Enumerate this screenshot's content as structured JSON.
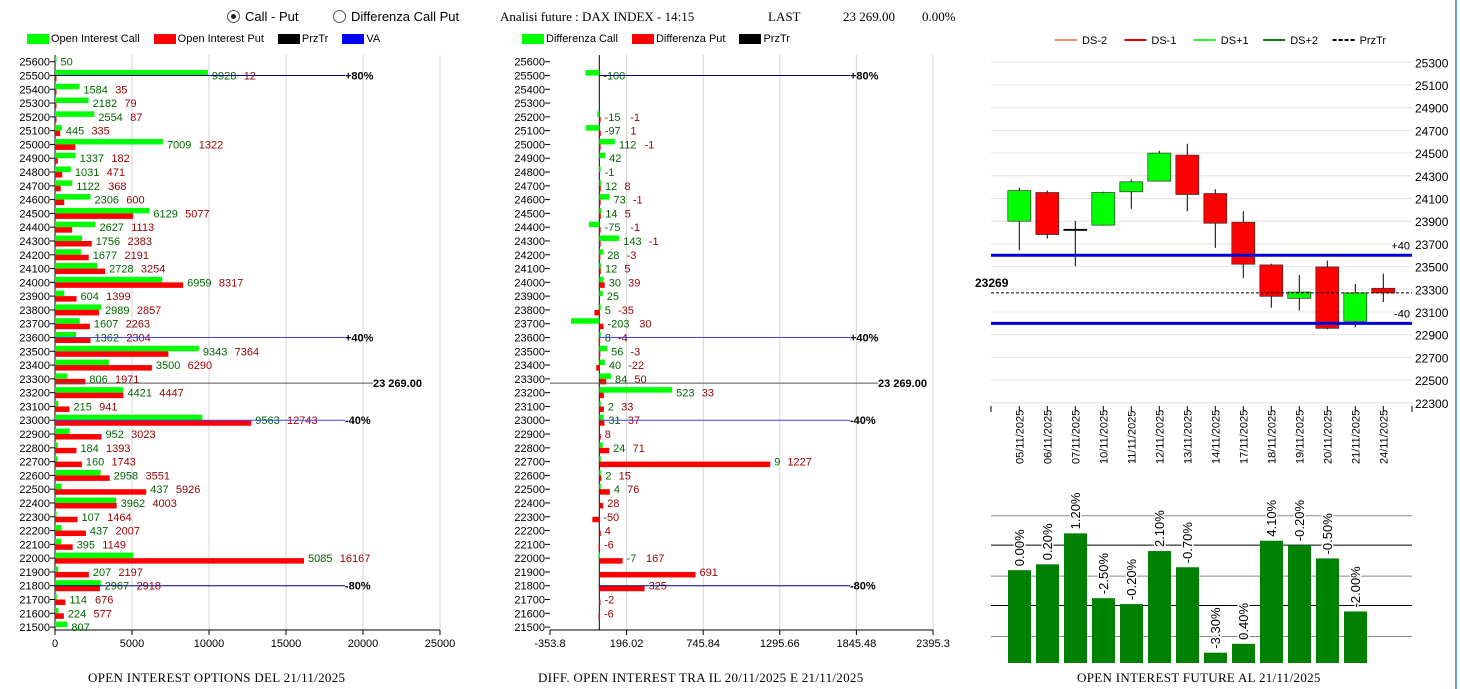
{
  "header": {
    "radio_options": [
      {
        "label": "Call - Put",
        "selected": true
      },
      {
        "label": "Differenza Call Put",
        "selected": false
      }
    ],
    "title": "Analisi future : DAX INDEX - 14:15",
    "last_label": "LAST",
    "last_value": "23 269.00",
    "change": "0.00%"
  },
  "colors": {
    "call": "#00ff00",
    "put": "#ff0000",
    "przTr": "#000000",
    "va": "#0000ff",
    "future_bar": "#008000"
  },
  "legend_left": [
    {
      "label": "Open Interest Call",
      "color": "#00ff00"
    },
    {
      "label": "Open Interest Put",
      "color": "#ff0000"
    },
    {
      "label": "PrzTr",
      "color": "#000000"
    },
    {
      "label": "VA",
      "color": "#0000ff"
    }
  ],
  "legend_middle": [
    {
      "label": "Differenza Call",
      "color": "#00ff00"
    },
    {
      "label": "Differenza Put",
      "color": "#ff0000"
    },
    {
      "label": "PrzTr",
      "color": "#000000"
    }
  ],
  "legend_right": [
    {
      "label": "DS-2",
      "color": "#f08c64",
      "dashed": false
    },
    {
      "label": "DS-1",
      "color": "#e00000",
      "dashed": false
    },
    {
      "label": "DS+1",
      "color": "#33ee33",
      "dashed": false
    },
    {
      "label": "DS+2",
      "color": "#117711",
      "dashed": false
    },
    {
      "label": "PrzTr",
      "color": "#000000",
      "dashed": true
    }
  ],
  "chart_data": [
    {
      "type": "bar",
      "orientation": "horizontal",
      "title": "OPEN INTEREST OPTIONS DEL 21/11/2025",
      "categories": [
        25600,
        25500,
        25400,
        25300,
        25200,
        25100,
        25000,
        24900,
        24800,
        24700,
        24600,
        24500,
        24400,
        24300,
        24200,
        24100,
        24000,
        23900,
        23800,
        23700,
        23600,
        23500,
        23400,
        23300,
        23200,
        23100,
        23000,
        22900,
        22800,
        22700,
        22600,
        22500,
        22400,
        22300,
        22200,
        22100,
        22000,
        21900,
        21800,
        21700,
        21600,
        21500
      ],
      "series": [
        {
          "name": "Open Interest Call",
          "values": [
            50,
            9928,
            1584,
            2182,
            2554,
            445,
            7009,
            1337,
            1031,
            1122,
            2306,
            6129,
            2627,
            1756,
            1677,
            2728,
            6959,
            604,
            2989,
            1607,
            1362,
            9343,
            3500,
            806,
            4421,
            215,
            9563,
            952,
            184,
            160,
            2958,
            437,
            3962,
            107,
            437,
            395,
            5085,
            207,
            2967,
            114,
            224,
            807
          ]
        },
        {
          "name": "Open Interest Put",
          "values": [
            null,
            12,
            35,
            79,
            87,
            335,
            1322,
            182,
            471,
            368,
            600,
            5077,
            1113,
            2383,
            2191,
            3254,
            8317,
            1399,
            2857,
            2263,
            2304,
            7364,
            6290,
            1971,
            4447,
            941,
            12743,
            3023,
            1393,
            1743,
            3551,
            5926,
            4003,
            1464,
            2007,
            1149,
            16167,
            2197,
            2918,
            676,
            577,
            null
          ]
        }
      ],
      "xlim": [
        0,
        25000
      ],
      "xticks": [
        "0",
        "5000",
        "10000",
        "15000",
        "20000",
        "25000"
      ],
      "reference_lines": [
        {
          "label": "+80%",
          "strike": 25500
        },
        {
          "label": "+40%",
          "strike": 23600
        },
        {
          "label": "-40%",
          "strike": 23000
        },
        {
          "label": "-80%",
          "strike": 21800
        }
      ],
      "price_line": {
        "value": 23269,
        "label": "23 269.00"
      }
    },
    {
      "type": "bar",
      "orientation": "horizontal",
      "title": "DIFF. OPEN INTEREST TRA IL 20/11/2025 E 21/11/2025",
      "categories": [
        25600,
        25500,
        25400,
        25300,
        25200,
        25100,
        25000,
        24900,
        24800,
        24700,
        24600,
        24500,
        24400,
        24300,
        24200,
        24100,
        24000,
        23900,
        23800,
        23700,
        23600,
        23500,
        23400,
        23300,
        23200,
        23100,
        23000,
        22900,
        22800,
        22700,
        22600,
        22500,
        22400,
        22300,
        22200,
        22100,
        22000,
        21900,
        21800,
        21700,
        21600,
        21500
      ],
      "series": [
        {
          "name": "Differenza Call",
          "values": [
            null,
            -100,
            null,
            null,
            -15,
            -97,
            112,
            42,
            -1,
            12,
            73,
            14,
            -75,
            143,
            28,
            12,
            30,
            25,
            5,
            -203,
            8,
            56,
            40,
            84,
            523,
            2,
            31,
            null,
            24,
            9,
            2,
            4,
            null,
            null,
            null,
            null,
            -7,
            null,
            null,
            null,
            null,
            null
          ]
        },
        {
          "name": "Differenza Put",
          "values": [
            null,
            null,
            null,
            null,
            -1,
            1,
            -1,
            null,
            null,
            8,
            -1,
            5,
            -1,
            -1,
            -3,
            5,
            39,
            null,
            -35,
            30,
            -4,
            -3,
            -22,
            50,
            33,
            33,
            37,
            8,
            71,
            1227,
            15,
            76,
            28,
            -50,
            4,
            -6,
            167,
            691,
            325,
            -2,
            -6,
            null
          ]
        }
      ],
      "xlim": [
        -353.8,
        2395.3
      ],
      "xticks": [
        "-353.8",
        "196.02",
        "745.84",
        "1295.66",
        "1845.48",
        "2395.3"
      ],
      "reference_lines": [
        {
          "label": "+80%",
          "strike": 25500
        },
        {
          "label": "+40%",
          "strike": 23600
        },
        {
          "label": "-40%",
          "strike": 23000
        },
        {
          "label": "-80%",
          "strike": 21800
        }
      ],
      "price_line": {
        "value": 23269,
        "label": "23 269.00"
      }
    },
    {
      "type": "candlestick",
      "categories": [
        "05/11/2025",
        "06/11/2025",
        "07/11/2025",
        "10/11/2025",
        "11/11/2025",
        "12/11/2025",
        "13/11/2025",
        "14/11/2025",
        "17/11/2025",
        "18/11/2025",
        "19/11/2025",
        "20/11/2025",
        "21/11/2025",
        "24/11/2025"
      ],
      "ohlc": [
        [
          23900,
          24194,
          23644,
          24170
        ],
        [
          24153,
          24170,
          23747,
          23782
        ],
        [
          23829,
          23903,
          23503,
          23829
        ],
        [
          23865,
          24160,
          23860,
          24153
        ],
        [
          24159,
          24268,
          24009,
          24247
        ],
        [
          24253,
          24521,
          24253,
          24500
        ],
        [
          24482,
          24582,
          23988,
          24135
        ],
        [
          24144,
          24182,
          23665,
          23882
        ],
        [
          23891,
          23988,
          23400,
          23521
        ],
        [
          23515,
          23526,
          23138,
          23238
        ],
        [
          23220,
          23426,
          23112,
          23276
        ],
        [
          23497,
          23553,
          22947,
          22956
        ],
        [
          23018,
          23347,
          22965,
          23268
        ],
        [
          23309,
          23438,
          23188,
          23268
        ]
      ],
      "ylim": [
        22300,
        25300
      ],
      "yticks": [
        "25300",
        "25100",
        "24900",
        "24700",
        "24500",
        "24300",
        "24100",
        "23900",
        "23700",
        "23500",
        "23300",
        "23100",
        "22900",
        "22700",
        "22500",
        "22300"
      ],
      "bands": [
        {
          "label": "+40",
          "value": 23600
        },
        {
          "label": "-40",
          "value": 23000
        }
      ],
      "price_line": {
        "value": 23269,
        "label": "23269"
      },
      "grid": true
    },
    {
      "type": "bar",
      "title": "OPEN INTEREST FUTURE AL 21/11/2025",
      "values_relative_percent": [
        63,
        67,
        88,
        44,
        40,
        76,
        65,
        7,
        13,
        83,
        80,
        71,
        35
      ],
      "labels": [
        "0.00%",
        "0.20%",
        "1.20%",
        "-2.50%",
        "-0.20%",
        "2.10%",
        "-0.70%",
        "-3.30%",
        "0.40%",
        "4.10%",
        "-0.20%",
        "-0.50%",
        "-2.00%"
      ],
      "ylim": [
        0,
        100
      ],
      "grid": true
    }
  ]
}
